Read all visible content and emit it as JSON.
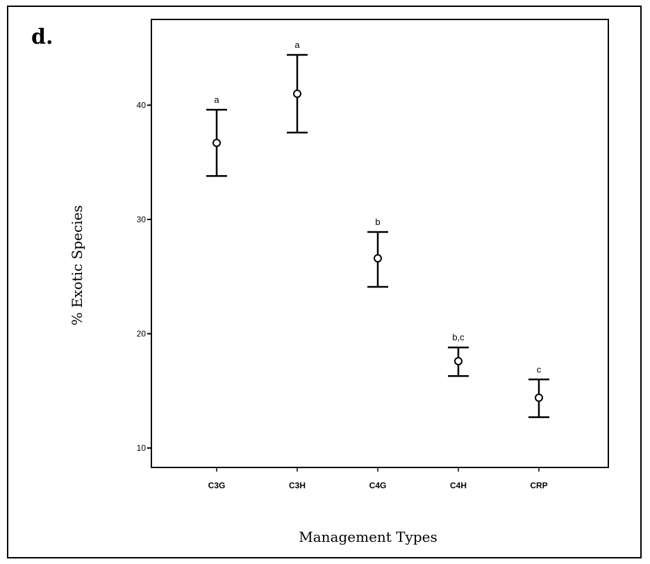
{
  "figure": {
    "panel_label": "d."
  },
  "chart_data": {
    "type": "errorbar",
    "xlabel": "Management Types",
    "ylabel": "% Exotic Species",
    "ylim": [
      8.3,
      47.5
    ],
    "yticks": [
      10,
      20,
      30,
      40
    ],
    "grid": false,
    "categories": [
      "C3G",
      "C3H",
      "C4G",
      "C4H",
      "CRP"
    ],
    "series": [
      {
        "mean": [
          36.7,
          41.0,
          26.6,
          17.6,
          14.4
        ],
        "lower": [
          33.8,
          37.6,
          24.1,
          16.3,
          12.7
        ],
        "upper": [
          39.6,
          44.4,
          28.9,
          18.8,
          16.0
        ],
        "group_letters": [
          "a",
          "a",
          "b",
          "b,c",
          "c"
        ]
      }
    ]
  }
}
